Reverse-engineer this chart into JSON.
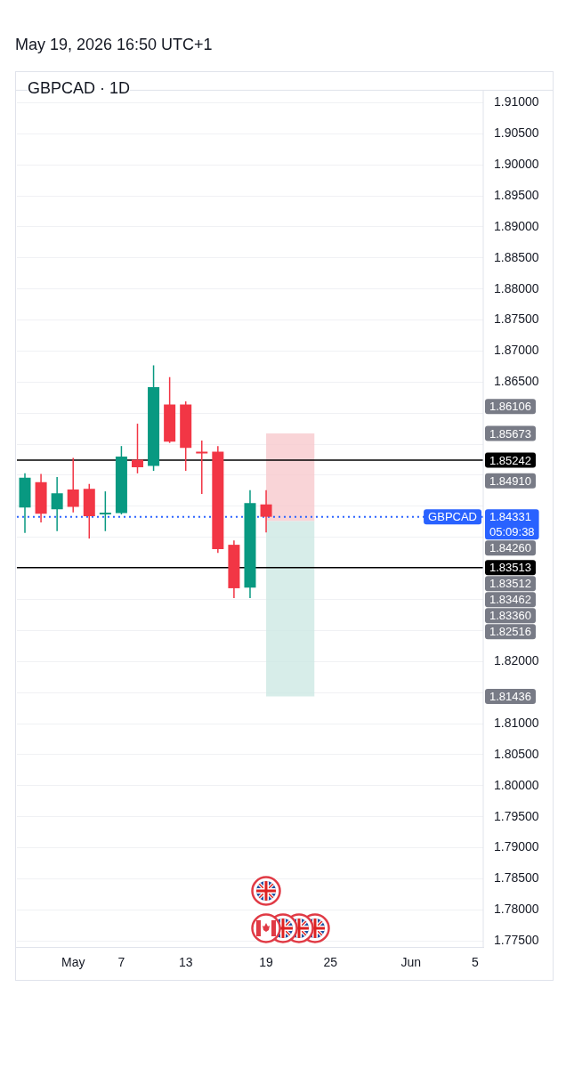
{
  "chart_data": {
    "type": "candlestick",
    "title": "GBPCAD · 1D",
    "subtitle": "May 19, 2026 16:50 UTC+1",
    "categories": [
      null,
      null,
      null,
      "May",
      null,
      null,
      "7",
      null,
      null,
      null,
      "13",
      null,
      null,
      null,
      null,
      "19",
      null,
      null,
      null,
      "25",
      null,
      null,
      null,
      null,
      "Jun",
      null,
      null,
      null,
      "5"
    ],
    "ohlc": [
      [
        1.8448,
        1.8503,
        1.8407,
        1.8496
      ],
      [
        1.8489,
        1.8502,
        1.8424,
        1.8438
      ],
      [
        1.8445,
        1.8497,
        1.841,
        1.8471
      ],
      [
        1.8477,
        1.8528,
        1.844,
        1.8449
      ],
      [
        1.8478,
        1.8486,
        1.8398,
        1.8434
      ],
      [
        1.8437,
        1.8474,
        1.841,
        1.8438
      ],
      [
        1.8439,
        1.8547,
        1.8437,
        1.853
      ],
      [
        1.8525,
        1.8583,
        1.8503,
        1.8513
      ],
      [
        1.8515,
        1.8677,
        1.8507,
        1.8642
      ],
      [
        1.8614,
        1.8658,
        1.8552,
        1.8554
      ],
      [
        1.8614,
        1.8619,
        1.8507,
        1.8544
      ],
      [
        1.8537,
        1.8556,
        1.847,
        1.8535
      ],
      [
        1.8538,
        1.8547,
        1.8375,
        1.8381
      ],
      [
        1.8388,
        1.8395,
        1.8302,
        1.8318
      ],
      [
        1.8319,
        1.8476,
        1.8302,
        1.8455
      ],
      [
        1.8453,
        1.8476,
        1.8408,
        1.84331
      ],
      null,
      null,
      null,
      null,
      null,
      null,
      null,
      null,
      null,
      null,
      null,
      null,
      null
    ],
    "colors": [
      "#089981",
      "#f23645",
      "#089981",
      "#f23645",
      "#f23645",
      "#089981",
      "#089981",
      "#f23645",
      "#089981",
      "#f23645",
      "#f23645",
      "#f23645",
      "#f23645",
      "#f23645",
      "#089981",
      "#f23645",
      null,
      null,
      null,
      null,
      null,
      null,
      null,
      null,
      null,
      null,
      null,
      null,
      null
    ],
    "ylim": [
      1.774,
      1.912
    ],
    "yticks": [
      {
        "value": 1.775,
        "label": "1.77500"
      },
      {
        "value": 1.78,
        "label": "1.78000"
      },
      {
        "value": 1.785,
        "label": "1.78500"
      },
      {
        "value": 1.79,
        "label": "1.79000"
      },
      {
        "value": 1.795,
        "label": "1.79500"
      },
      {
        "value": 1.8,
        "label": "1.80000"
      },
      {
        "value": 1.805,
        "label": "1.80500"
      },
      {
        "value": 1.81,
        "label": "1.81000"
      },
      {
        "value": 1.815,
        "label": null
      },
      {
        "value": 1.82,
        "label": "1.82000"
      },
      {
        "value": 1.825,
        "label": null
      },
      {
        "value": 1.83,
        "label": null
      },
      {
        "value": 1.835,
        "label": null
      },
      {
        "value": 1.84,
        "label": null
      },
      {
        "value": 1.845,
        "label": null
      },
      {
        "value": 1.85,
        "label": null
      },
      {
        "value": 1.855,
        "label": null
      },
      {
        "value": 1.86,
        "label": null
      },
      {
        "value": 1.865,
        "label": "1.86500"
      },
      {
        "value": 1.87,
        "label": "1.87000"
      },
      {
        "value": 1.875,
        "label": "1.87500"
      },
      {
        "value": 1.88,
        "label": "1.88000"
      },
      {
        "value": 1.885,
        "label": "1.88500"
      },
      {
        "value": 1.89,
        "label": "1.89000"
      },
      {
        "value": 1.895,
        "label": "1.89500"
      },
      {
        "value": 1.9,
        "label": "1.90000"
      },
      {
        "value": 1.905,
        "label": "1.90500"
      },
      {
        "value": 1.91,
        "label": "1.91000"
      }
    ],
    "grid": "y",
    "ref_lines": [
      {
        "axis": "y",
        "value": 1.85242,
        "label": "1.85242",
        "color": "#000000",
        "line_style": "solid"
      },
      {
        "axis": "y",
        "value": 1.83513,
        "label": "1.83513",
        "color": "#000000",
        "line_style": "solid"
      },
      {
        "axis": "y",
        "value": 1.84331,
        "label": "GBPCAD",
        "color": "#2962ff",
        "line_style": "dotted"
      }
    ],
    "bands": [
      {
        "axis": "y",
        "from": 1.8426,
        "to": 1.85673,
        "color": "#f7c9cd"
      },
      {
        "axis": "y",
        "from": 1.81436,
        "to": 1.8426,
        "color": "#cde9e3"
      }
    ],
    "annotations": [
      "1.86106",
      "1.85673",
      "1.84910",
      "1.84331",
      "05:09:38",
      "1.84260",
      "1.83512",
      "1.83462",
      "1.83360",
      "1.82516",
      "1.81436"
    ]
  }
}
